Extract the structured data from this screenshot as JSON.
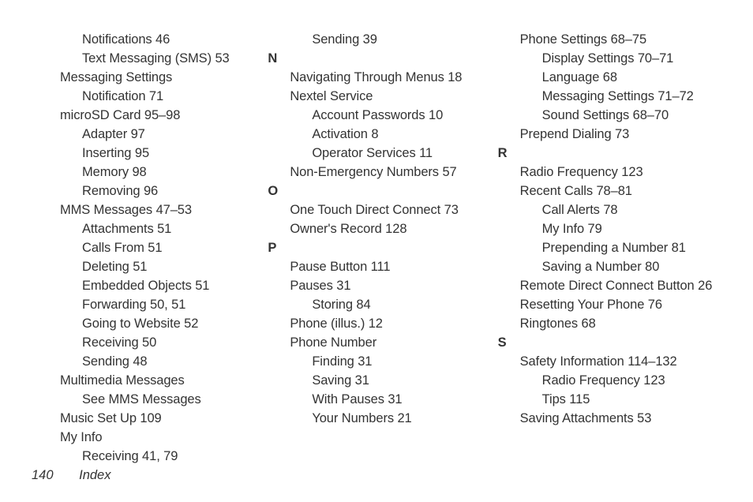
{
  "footer": {
    "page_number": "140",
    "label": "Index"
  },
  "columns": [
    {
      "entries": [
        {
          "level": 2,
          "text": "Notifications 46"
        },
        {
          "level": 2,
          "text": "Text Messaging (SMS) 53"
        },
        {
          "level": 1,
          "text": "Messaging Settings"
        },
        {
          "level": 2,
          "text": "Notification 71"
        },
        {
          "level": 1,
          "text": "microSD Card 95–98"
        },
        {
          "level": 2,
          "text": "Adapter 97"
        },
        {
          "level": 2,
          "text": "Inserting 95"
        },
        {
          "level": 2,
          "text": "Memory 98"
        },
        {
          "level": 2,
          "text": "Removing 96"
        },
        {
          "level": 1,
          "text": "MMS Messages 47–53"
        },
        {
          "level": 2,
          "text": "Attachments 51"
        },
        {
          "level": 2,
          "text": "Calls From 51"
        },
        {
          "level": 2,
          "text": "Deleting 51"
        },
        {
          "level": 2,
          "text": "Embedded Objects 51"
        },
        {
          "level": 2,
          "text": "Forwarding 50, 51"
        },
        {
          "level": 2,
          "text": "Going to Website 52"
        },
        {
          "level": 2,
          "text": "Receiving 50"
        },
        {
          "level": 2,
          "text": "Sending 48"
        },
        {
          "level": 1,
          "text": "Multimedia Messages"
        },
        {
          "level": 2,
          "text": "See MMS Messages"
        },
        {
          "level": 1,
          "text": "Music Set Up 109"
        },
        {
          "level": 1,
          "text": "My Info"
        },
        {
          "level": 2,
          "text": "Receiving 41, 79"
        }
      ]
    },
    {
      "entries": [
        {
          "level": 2,
          "text": "Sending 39"
        },
        {
          "letter": "N"
        },
        {
          "level": 1,
          "text": "Navigating Through Menus 18"
        },
        {
          "level": 1,
          "text": "Nextel Service"
        },
        {
          "level": 2,
          "text": "Account Passwords 10"
        },
        {
          "level": 2,
          "text": "Activation 8"
        },
        {
          "level": 2,
          "text": "Operator Services 11"
        },
        {
          "level": 1,
          "text": "Non-Emergency Numbers 57"
        },
        {
          "letter": "O"
        },
        {
          "level": 1,
          "text": "One Touch Direct Connect 73"
        },
        {
          "level": 1,
          "text": "Owner's Record 128"
        },
        {
          "letter": "P"
        },
        {
          "level": 1,
          "text": "Pause Button 111"
        },
        {
          "level": 1,
          "text": "Pauses 31"
        },
        {
          "level": 2,
          "text": "Storing 84"
        },
        {
          "level": 1,
          "text": "Phone (illus.) 12"
        },
        {
          "level": 1,
          "text": "Phone Number"
        },
        {
          "level": 2,
          "text": "Finding 31"
        },
        {
          "level": 2,
          "text": "Saving 31"
        },
        {
          "level": 2,
          "text": "With Pauses 31"
        },
        {
          "level": 2,
          "text": "Your Numbers 21"
        }
      ]
    },
    {
      "entries": [
        {
          "level": 1,
          "text": "Phone Settings 68–75"
        },
        {
          "level": 2,
          "text": "Display Settings 70–71"
        },
        {
          "level": 2,
          "text": "Language 68"
        },
        {
          "level": 2,
          "text": "Messaging Settings 71–72"
        },
        {
          "level": 2,
          "text": "Sound Settings 68–70"
        },
        {
          "level": 1,
          "text": "Prepend Dialing 73"
        },
        {
          "letter": "R"
        },
        {
          "level": 1,
          "text": "Radio Frequency 123"
        },
        {
          "level": 1,
          "text": "Recent Calls 78–81"
        },
        {
          "level": 2,
          "text": "Call Alerts 78"
        },
        {
          "level": 2,
          "text": "My Info 79"
        },
        {
          "level": 2,
          "text": "Prepending a Number 81"
        },
        {
          "level": 2,
          "text": "Saving a Number 80"
        },
        {
          "level": 1,
          "text": "Remote Direct Connect Button 26"
        },
        {
          "level": 1,
          "text": "Resetting Your Phone 76"
        },
        {
          "level": 1,
          "text": "Ringtones 68"
        },
        {
          "letter": "S"
        },
        {
          "level": 1,
          "text": "Safety Information 114–132"
        },
        {
          "level": 2,
          "text": "Radio Frequency 123"
        },
        {
          "level": 2,
          "text": "Tips 115"
        },
        {
          "level": 1,
          "text": "Saving Attachments 53"
        }
      ]
    }
  ]
}
